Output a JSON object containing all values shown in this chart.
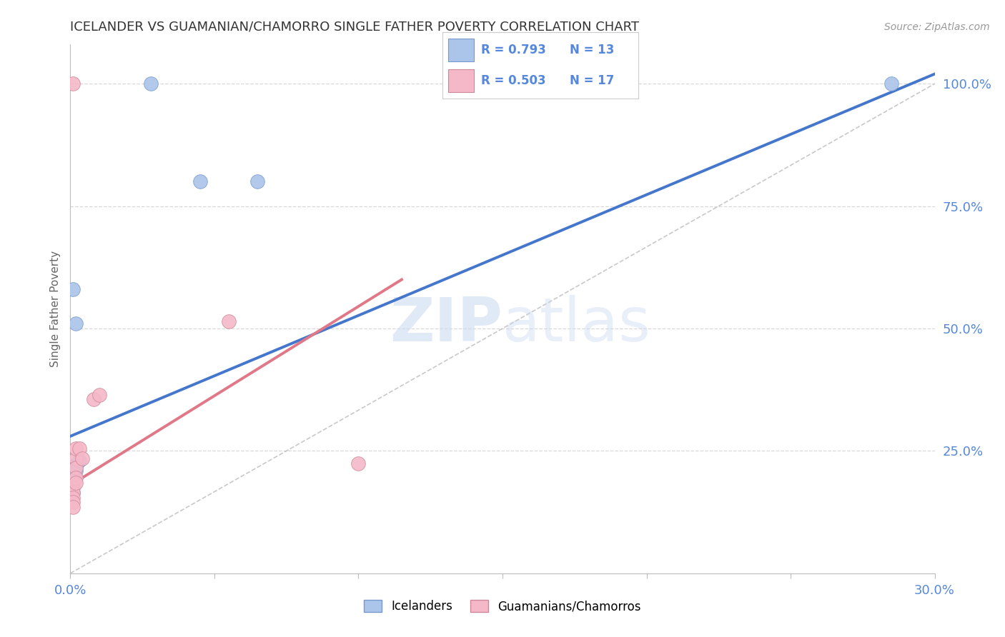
{
  "title": "ICELANDER VS GUAMANIAN/CHAMORRO SINGLE FATHER POVERTY CORRELATION CHART",
  "source": "Source: ZipAtlas.com",
  "ylabel": "Single Father Poverty",
  "ylabel_right_ticks": [
    "25.0%",
    "50.0%",
    "75.0%",
    "100.0%"
  ],
  "xlim": [
    0.0,
    0.3
  ],
  "ylim": [
    0.0,
    1.08
  ],
  "blue_scatter": [
    [
      0.001,
      0.58
    ],
    [
      0.002,
      0.51
    ],
    [
      0.001,
      0.22
    ],
    [
      0.001,
      0.215
    ],
    [
      0.001,
      0.185
    ],
    [
      0.001,
      0.165
    ],
    [
      0.002,
      0.22
    ],
    [
      0.002,
      0.21
    ],
    [
      0.003,
      0.23
    ],
    [
      0.028,
      1.0
    ],
    [
      0.045,
      0.8
    ],
    [
      0.065,
      0.8
    ],
    [
      0.285,
      1.0
    ]
  ],
  "pink_scatter": [
    [
      0.001,
      1.0
    ],
    [
      0.001,
      0.175
    ],
    [
      0.001,
      0.165
    ],
    [
      0.001,
      0.155
    ],
    [
      0.001,
      0.145
    ],
    [
      0.001,
      0.135
    ],
    [
      0.002,
      0.235
    ],
    [
      0.002,
      0.215
    ],
    [
      0.002,
      0.195
    ],
    [
      0.002,
      0.185
    ],
    [
      0.002,
      0.255
    ],
    [
      0.003,
      0.255
    ],
    [
      0.004,
      0.235
    ],
    [
      0.008,
      0.355
    ],
    [
      0.01,
      0.365
    ],
    [
      0.055,
      0.515
    ],
    [
      0.1,
      0.225
    ]
  ],
  "blue_line_x": [
    0.0,
    0.3
  ],
  "blue_line_y": [
    0.28,
    1.02
  ],
  "pink_line_x": [
    0.0,
    0.115
  ],
  "pink_line_y": [
    0.18,
    0.6
  ],
  "grey_line_x": [
    0.0,
    0.3
  ],
  "grey_line_y": [
    0.0,
    1.0
  ],
  "R_blue": "0.793",
  "N_blue": "13",
  "R_pink": "0.503",
  "N_pink": "17",
  "blue_color": "#aac4ea",
  "pink_color": "#f5b8c8",
  "blue_line_color": "#4477cc",
  "pink_line_color": "#e07888",
  "grey_line_color": "#bbbbbb",
  "watermark_zip": "ZIP",
  "watermark_atlas": "atlas",
  "legend_label_blue": "Icelanders",
  "legend_label_pink": "Guamanians/Chamorros",
  "scatter_size": 200,
  "grid_color": "#d8d8d8",
  "tick_color": "#5588dd"
}
